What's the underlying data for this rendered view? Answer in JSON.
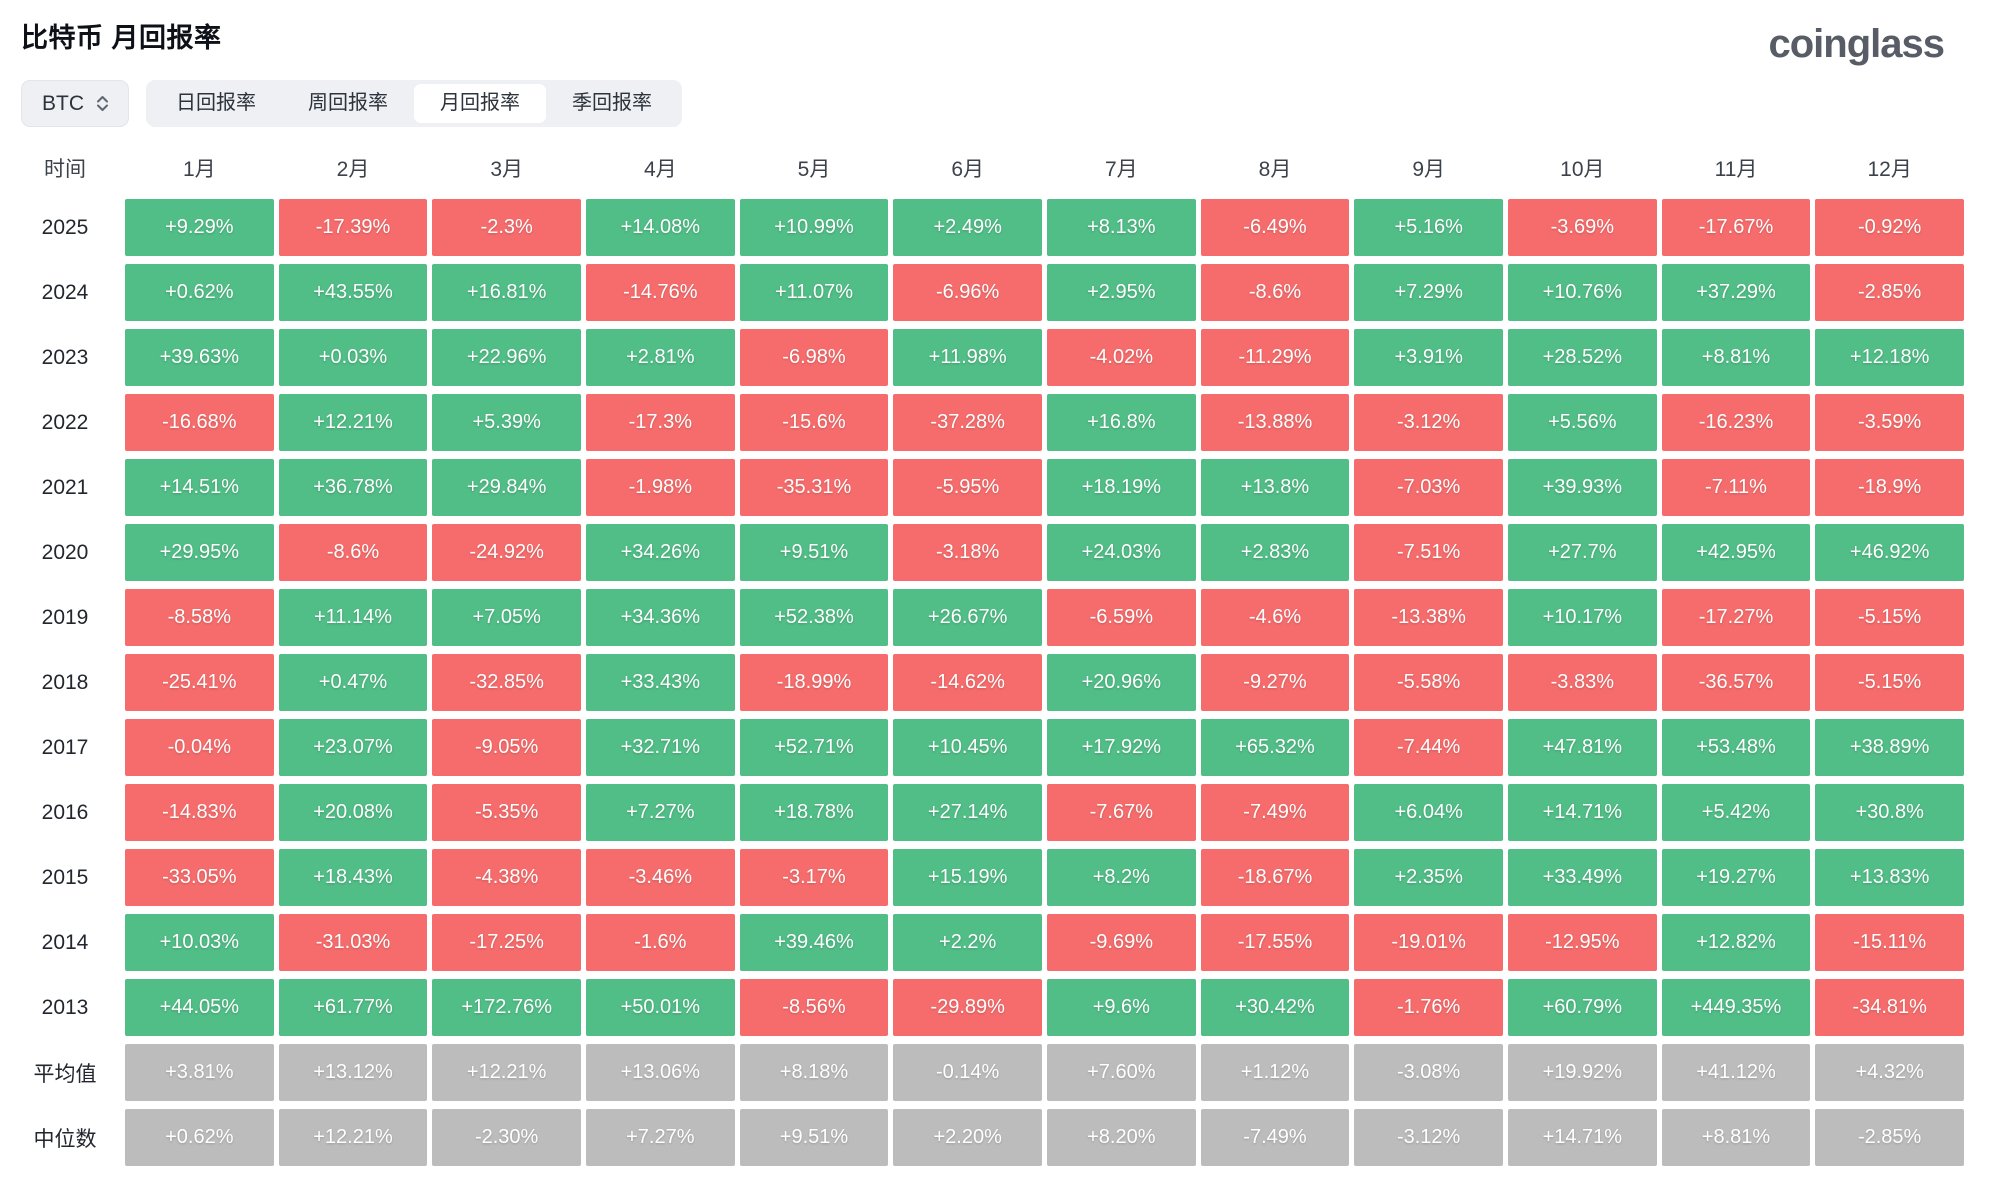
{
  "header": {
    "title": "比特币 月回报率",
    "logo": "coinglass"
  },
  "controls": {
    "symbol_select": {
      "value": "BTC",
      "icon": "updown-chevron-icon"
    },
    "tabs": [
      {
        "label": "日回报率",
        "active": false
      },
      {
        "label": "周回报率",
        "active": false
      },
      {
        "label": "月回报率",
        "active": true
      },
      {
        "label": "季回报率",
        "active": false
      }
    ]
  },
  "table": {
    "time_header": "时间",
    "month_headers": [
      "1月",
      "2月",
      "3月",
      "4月",
      "5月",
      "6月",
      "7月",
      "8月",
      "9月",
      "10月",
      "11月",
      "12月"
    ],
    "rows": [
      {
        "label": "2025",
        "type": "data",
        "values": [
          "+9.29%",
          "-17.39%",
          "-2.3%",
          "+14.08%",
          "+10.99%",
          "+2.49%",
          "+8.13%",
          "-6.49%",
          "+5.16%",
          "-3.69%",
          "-17.67%",
          "-0.92%"
        ]
      },
      {
        "label": "2024",
        "type": "data",
        "values": [
          "+0.62%",
          "+43.55%",
          "+16.81%",
          "-14.76%",
          "+11.07%",
          "-6.96%",
          "+2.95%",
          "-8.6%",
          "+7.29%",
          "+10.76%",
          "+37.29%",
          "-2.85%"
        ]
      },
      {
        "label": "2023",
        "type": "data",
        "values": [
          "+39.63%",
          "+0.03%",
          "+22.96%",
          "+2.81%",
          "-6.98%",
          "+11.98%",
          "-4.02%",
          "-11.29%",
          "+3.91%",
          "+28.52%",
          "+8.81%",
          "+12.18%"
        ]
      },
      {
        "label": "2022",
        "type": "data",
        "values": [
          "-16.68%",
          "+12.21%",
          "+5.39%",
          "-17.3%",
          "-15.6%",
          "-37.28%",
          "+16.8%",
          "-13.88%",
          "-3.12%",
          "+5.56%",
          "-16.23%",
          "-3.59%"
        ]
      },
      {
        "label": "2021",
        "type": "data",
        "values": [
          "+14.51%",
          "+36.78%",
          "+29.84%",
          "-1.98%",
          "-35.31%",
          "-5.95%",
          "+18.19%",
          "+13.8%",
          "-7.03%",
          "+39.93%",
          "-7.11%",
          "-18.9%"
        ]
      },
      {
        "label": "2020",
        "type": "data",
        "values": [
          "+29.95%",
          "-8.6%",
          "-24.92%",
          "+34.26%",
          "+9.51%",
          "-3.18%",
          "+24.03%",
          "+2.83%",
          "-7.51%",
          "+27.7%",
          "+42.95%",
          "+46.92%"
        ]
      },
      {
        "label": "2019",
        "type": "data",
        "values": [
          "-8.58%",
          "+11.14%",
          "+7.05%",
          "+34.36%",
          "+52.38%",
          "+26.67%",
          "-6.59%",
          "-4.6%",
          "-13.38%",
          "+10.17%",
          "-17.27%",
          "-5.15%"
        ]
      },
      {
        "label": "2018",
        "type": "data",
        "values": [
          "-25.41%",
          "+0.47%",
          "-32.85%",
          "+33.43%",
          "-18.99%",
          "-14.62%",
          "+20.96%",
          "-9.27%",
          "-5.58%",
          "-3.83%",
          "-36.57%",
          "-5.15%"
        ]
      },
      {
        "label": "2017",
        "type": "data",
        "values": [
          "-0.04%",
          "+23.07%",
          "-9.05%",
          "+32.71%",
          "+52.71%",
          "+10.45%",
          "+17.92%",
          "+65.32%",
          "-7.44%",
          "+47.81%",
          "+53.48%",
          "+38.89%"
        ]
      },
      {
        "label": "2016",
        "type": "data",
        "values": [
          "-14.83%",
          "+20.08%",
          "-5.35%",
          "+7.27%",
          "+18.78%",
          "+27.14%",
          "-7.67%",
          "-7.49%",
          "+6.04%",
          "+14.71%",
          "+5.42%",
          "+30.8%"
        ]
      },
      {
        "label": "2015",
        "type": "data",
        "values": [
          "-33.05%",
          "+18.43%",
          "-4.38%",
          "-3.46%",
          "-3.17%",
          "+15.19%",
          "+8.2%",
          "-18.67%",
          "+2.35%",
          "+33.49%",
          "+19.27%",
          "+13.83%"
        ]
      },
      {
        "label": "2014",
        "type": "data",
        "values": [
          "+10.03%",
          "-31.03%",
          "-17.25%",
          "-1.6%",
          "+39.46%",
          "+2.2%",
          "-9.69%",
          "-17.55%",
          "-19.01%",
          "-12.95%",
          "+12.82%",
          "-15.11%"
        ]
      },
      {
        "label": "2013",
        "type": "data",
        "values": [
          "+44.05%",
          "+61.77%",
          "+172.76%",
          "+50.01%",
          "-8.56%",
          "-29.89%",
          "+9.6%",
          "+30.42%",
          "-1.76%",
          "+60.79%",
          "+449.35%",
          "-34.81%"
        ]
      },
      {
        "label": "平均值",
        "type": "summary",
        "values": [
          "+3.81%",
          "+13.12%",
          "+12.21%",
          "+13.06%",
          "+8.18%",
          "-0.14%",
          "+7.60%",
          "+1.12%",
          "-3.08%",
          "+19.92%",
          "+41.12%",
          "+4.32%"
        ]
      },
      {
        "label": "中位数",
        "type": "summary",
        "values": [
          "+0.62%",
          "+12.21%",
          "-2.30%",
          "+7.27%",
          "+9.51%",
          "+2.20%",
          "+8.20%",
          "-7.49%",
          "-3.12%",
          "+14.71%",
          "+8.81%",
          "-2.85%"
        ]
      }
    ]
  },
  "colors": {
    "positive": "#51BD87",
    "negative": "#F66C6C",
    "summary": "#BCBCBC"
  }
}
